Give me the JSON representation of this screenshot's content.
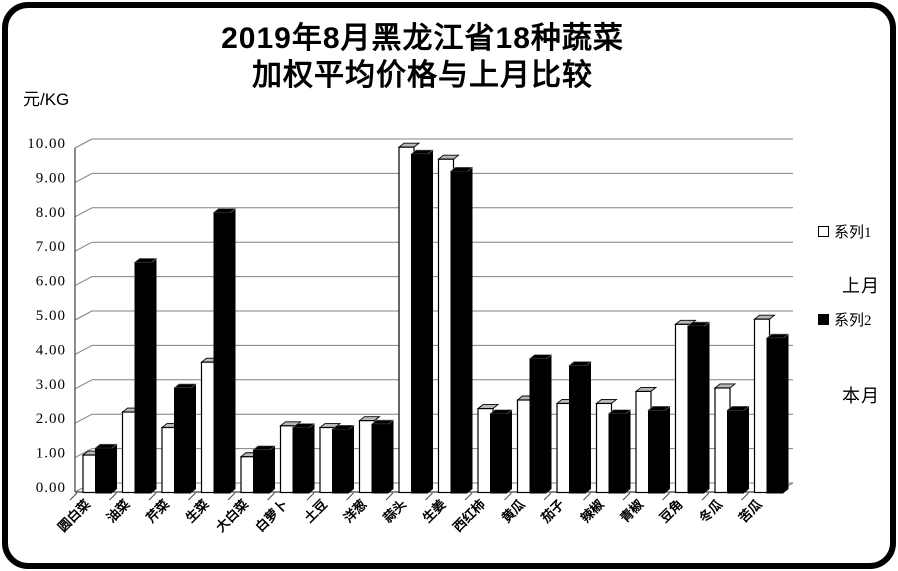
{
  "title": {
    "line1": "2019年8月黑龙江省18种蔬菜",
    "line2": "加权平均价格与上月比较"
  },
  "y_axis_unit": "元/KG",
  "legend": {
    "series1_label": "系列1",
    "series1_note": "上月",
    "series2_label": "系列2",
    "series2_note": "本月"
  },
  "colors": {
    "series1_fill": "#ffffff",
    "series1_top_face": "#b8b8b8",
    "series2_fill": "#000000",
    "gridline": "#808080",
    "axis": "#404040",
    "text": "#000000",
    "frame": "#000000",
    "background": "#ffffff"
  },
  "chart_data": {
    "type": "bar",
    "style": "3d-clustered-column",
    "title": "2019年8月黑龙江省18种蔬菜 加权平均价格与上月比较",
    "ylabel": "元/KG",
    "xlabel": "",
    "ylim": [
      0,
      10
    ],
    "ytick_interval": 1,
    "ytick_labels": [
      "0.00",
      "1.00",
      "2.00",
      "3.00",
      "4.00",
      "5.00",
      "6.00",
      "7.00",
      "8.00",
      "9.00",
      "10.00"
    ],
    "grid": true,
    "legend_position": "right",
    "categories": [
      "圆白菜",
      "油菜",
      "芹菜",
      "生菜",
      "大白菜",
      "白萝卜",
      "土豆",
      "洋葱",
      "蒜头",
      "生姜",
      "西红柿",
      "黄瓜",
      "茄子",
      "辣椒",
      "青椒",
      "豆角",
      "冬瓜",
      "苦瓜"
    ],
    "series": [
      {
        "name": "系列1",
        "meaning": "上月",
        "color": "#ffffff",
        "values": [
          0.9,
          2.15,
          1.7,
          3.6,
          0.85,
          1.75,
          1.7,
          1.9,
          9.85,
          9.5,
          2.25,
          2.5,
          2.4,
          2.4,
          2.75,
          4.7,
          2.85,
          4.85
        ]
      },
      {
        "name": "系列2",
        "meaning": "本月",
        "color": "#000000",
        "values": [
          1.1,
          6.5,
          2.85,
          7.95,
          1.05,
          1.7,
          1.65,
          1.8,
          9.65,
          9.15,
          2.1,
          3.7,
          3.5,
          2.1,
          2.2,
          4.65,
          2.2,
          4.3
        ]
      }
    ]
  }
}
